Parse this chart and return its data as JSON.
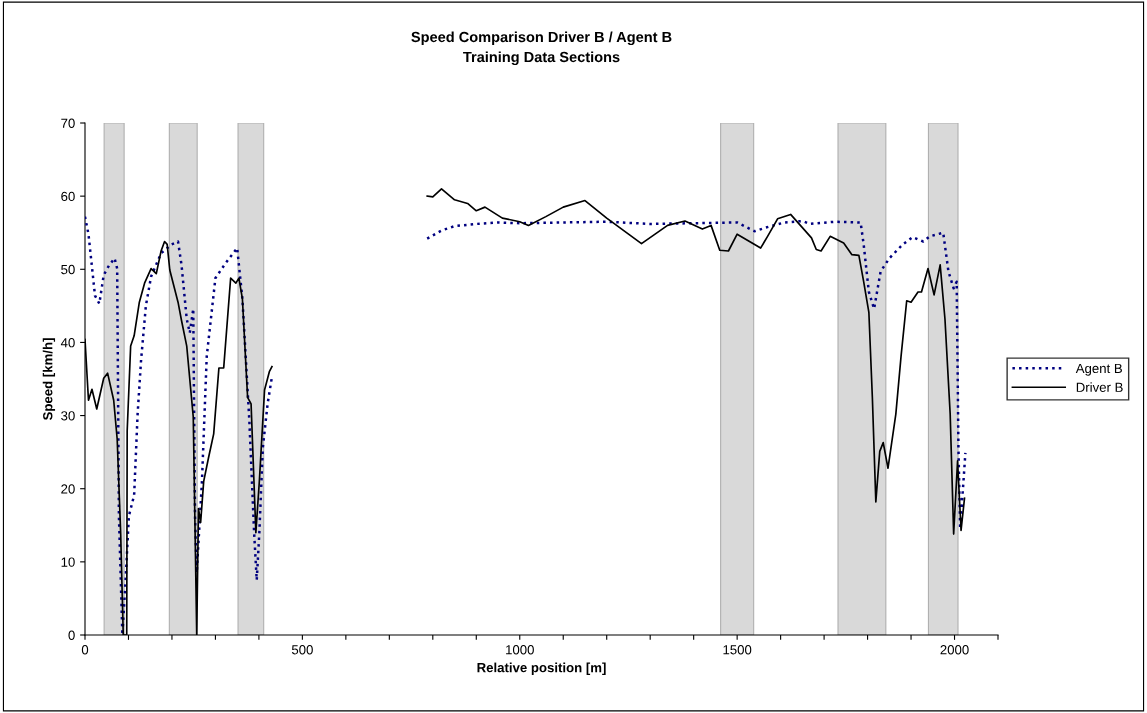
{
  "chart_data": {
    "type": "line",
    "title": "Speed Comparison Driver B / Agent B",
    "subtitle": "Training Data Sections",
    "xlabel": "Relative position [m]",
    "ylabel": "Speed [km/h]",
    "xlim": [
      0,
      2100
    ],
    "xticks": [
      0,
      {
        "value": 100,
        "label": null
      },
      {
        "value": 200,
        "label": null
      },
      {
        "value": 300,
        "label": null
      },
      {
        "value": 400,
        "label": null
      },
      500,
      {
        "value": 600,
        "label": null
      },
      {
        "value": 700,
        "label": null
      },
      {
        "value": 800,
        "label": null
      },
      {
        "value": 900,
        "label": null
      },
      1000,
      {
        "value": 1100,
        "label": null
      },
      {
        "value": 1200,
        "label": null
      },
      {
        "value": 1300,
        "label": null
      },
      {
        "value": 1400,
        "label": null
      },
      1500,
      {
        "value": 1600,
        "label": null
      },
      {
        "value": 1700,
        "label": null
      },
      {
        "value": 1800,
        "label": null
      },
      {
        "value": 1900,
        "label": null
      },
      2000,
      {
        "value": 2100,
        "label": null
      }
    ],
    "ylim": [
      0,
      70
    ],
    "yticks": [
      0,
      10,
      20,
      30,
      40,
      50,
      60,
      70
    ],
    "grid": false,
    "legend": "right",
    "bands": [
      {
        "axis": "x",
        "from": 44,
        "to": 90,
        "color": "#d9d9d9"
      },
      {
        "axis": "x",
        "from": 194,
        "to": 258,
        "color": "#d9d9d9"
      },
      {
        "axis": "x",
        "from": 352,
        "to": 411,
        "color": "#d9d9d9"
      },
      {
        "axis": "x",
        "from": 1462,
        "to": 1538,
        "color": "#d9d9d9"
      },
      {
        "axis": "x",
        "from": 1732,
        "to": 1842,
        "color": "#d9d9d9"
      },
      {
        "axis": "x",
        "from": 1940,
        "to": 2008,
        "color": "#d9d9d9"
      }
    ],
    "series": [
      {
        "name": "Agent B",
        "color": "#000080",
        "line_style": "dotted",
        "x": [
          0,
          8,
          23,
          33,
          43,
          55,
          68,
          74,
          78,
          86,
          93,
          101,
          113,
          121,
          129,
          140,
          152,
          175,
          199,
          214,
          222,
          234,
          241,
          249,
          253,
          257,
          269,
          280,
          300,
          323,
          350,
          362,
          378,
          389,
          395,
          401,
          409,
          420,
          430,
          null,
          787,
          820,
          850,
          900,
          950,
          1000,
          1100,
          1200,
          1300,
          1400,
          1500,
          1540,
          1566,
          1609,
          1651,
          1667,
          1725,
          1784,
          1791,
          1803,
          1815,
          1830,
          1850,
          1881,
          1904,
          1928,
          1943,
          1974,
          1986,
          1998,
          2005,
          2009,
          2013,
          2021,
          2025
        ],
        "values": [
          57.2,
          54.8,
          46.4,
          45.3,
          49.2,
          50.5,
          51.5,
          50.1,
          16.3,
          0,
          7.1,
          16.3,
          19.1,
          30.2,
          37.6,
          45.0,
          49.0,
          52.2,
          53.4,
          53.8,
          50.6,
          43.2,
          41.3,
          44.6,
          16.3,
          8.5,
          21.0,
          38.1,
          48.8,
          50.8,
          52.9,
          46.0,
          29.3,
          14.0,
          7.5,
          14.0,
          25.6,
          31.6,
          35.3,
          null,
          54.2,
          55.3,
          55.9,
          56.2,
          56.4,
          56.3,
          56.4,
          56.5,
          56.2,
          56.3,
          56.4,
          55.2,
          55.7,
          56.4,
          56.6,
          56.2,
          56.5,
          56.4,
          53.4,
          46.9,
          44.6,
          49.7,
          51.5,
          53.4,
          54.4,
          53.8,
          54.5,
          55.0,
          49.7,
          47.4,
          48.3,
          25.6,
          14.5,
          21.4,
          24.9
        ]
      },
      {
        "name": "Driver B",
        "color": "#000000",
        "line_style": "solid",
        "x": [
          0,
          8,
          16,
          27,
          43,
          52,
          66,
          74,
          82,
          88,
          96,
          97,
          105,
          113,
          125,
          137,
          152,
          164,
          175,
          183,
          189,
          195,
          214,
          222,
          234,
          249,
          257,
          261,
          266,
          273,
          284,
          296,
          308,
          319,
          335,
          347,
          354,
          362,
          374,
          382,
          393,
          401,
          413,
          424,
          430,
          null,
          787,
          800,
          820,
          850,
          880,
          900,
          920,
          960,
          1000,
          1020,
          1060,
          1100,
          1150,
          1200,
          1280,
          1340,
          1380,
          1420,
          1440,
          1460,
          1480,
          1500,
          1554,
          1570,
          1593,
          1623,
          1647,
          1671,
          1682,
          1693,
          1714,
          1745,
          1764,
          1780,
          1791,
          1803,
          1811,
          1819,
          1828,
          1836,
          1847,
          1865,
          1877,
          1890,
          1900,
          1916,
          1924,
          1939,
          1953,
          1967,
          1978,
          1990,
          1998,
          2007,
          2015,
          2023
        ],
        "values": [
          40.4,
          32.1,
          33.6,
          30.9,
          35.1,
          35.8,
          32.1,
          26.8,
          14.0,
          0,
          0,
          27.9,
          39.5,
          40.9,
          45.5,
          48.1,
          50.1,
          49.4,
          52.5,
          53.8,
          53.4,
          49.9,
          45.5,
          43.0,
          39.5,
          29.8,
          0,
          17.3,
          15.4,
          21.0,
          24.2,
          27.5,
          36.5,
          36.5,
          48.8,
          48.1,
          48.8,
          46.0,
          32.5,
          31.6,
          14.0,
          21.0,
          33.5,
          36.0,
          36.7,
          null,
          60.0,
          59.9,
          61.0,
          59.5,
          59.0,
          58.0,
          58.5,
          57.0,
          56.5,
          56.0,
          57.2,
          58.5,
          59.4,
          57.0,
          53.5,
          56.0,
          56.6,
          55.5,
          56.0,
          52.6,
          52.5,
          54.8,
          52.9,
          54.5,
          56.9,
          57.5,
          55.9,
          54.3,
          52.7,
          52.5,
          54.5,
          53.6,
          52.0,
          51.9,
          48.3,
          44.1,
          32.5,
          18.2,
          25.1,
          26.3,
          22.8,
          30.2,
          38.1,
          45.7,
          45.5,
          46.9,
          46.9,
          50.1,
          46.5,
          50.6,
          43.2,
          30.2,
          13.8,
          23.8,
          14.3,
          18.7
        ]
      }
    ]
  }
}
